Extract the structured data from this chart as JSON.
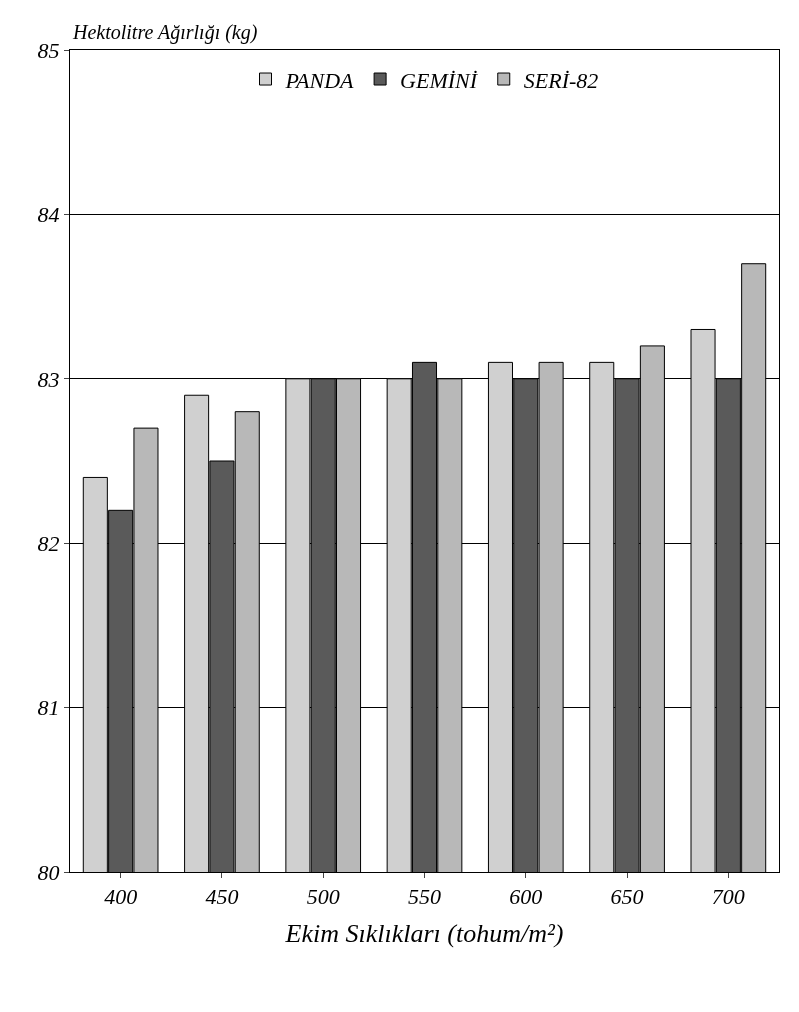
{
  "chart_data": {
    "type": "bar",
    "ylabel": "Hektolitre Ağırlığı (kg)",
    "xlabel": "Ekim Sıklıkları (tohum/m²)",
    "categories": [
      "400",
      "450",
      "500",
      "550",
      "600",
      "650",
      "700"
    ],
    "series": [
      {
        "name": "PANDA",
        "color": "#d0d0d0",
        "values": [
          82.4,
          82.9,
          83.0,
          83.0,
          83.1,
          83.1,
          83.3
        ]
      },
      {
        "name": "GEMİNİ",
        "color": "#5a5a5a",
        "values": [
          82.2,
          82.5,
          83.0,
          83.1,
          83.0,
          83.0,
          83.0
        ]
      },
      {
        "name": "SERİ-82",
        "color": "#b8b8b8",
        "values": [
          82.7,
          82.8,
          83.0,
          83.0,
          83.1,
          83.2,
          83.7
        ]
      }
    ],
    "ylim": [
      80,
      85
    ],
    "yticks": [
      80,
      81,
      82,
      83,
      84,
      85
    ],
    "grid": "y",
    "legend": "top"
  }
}
